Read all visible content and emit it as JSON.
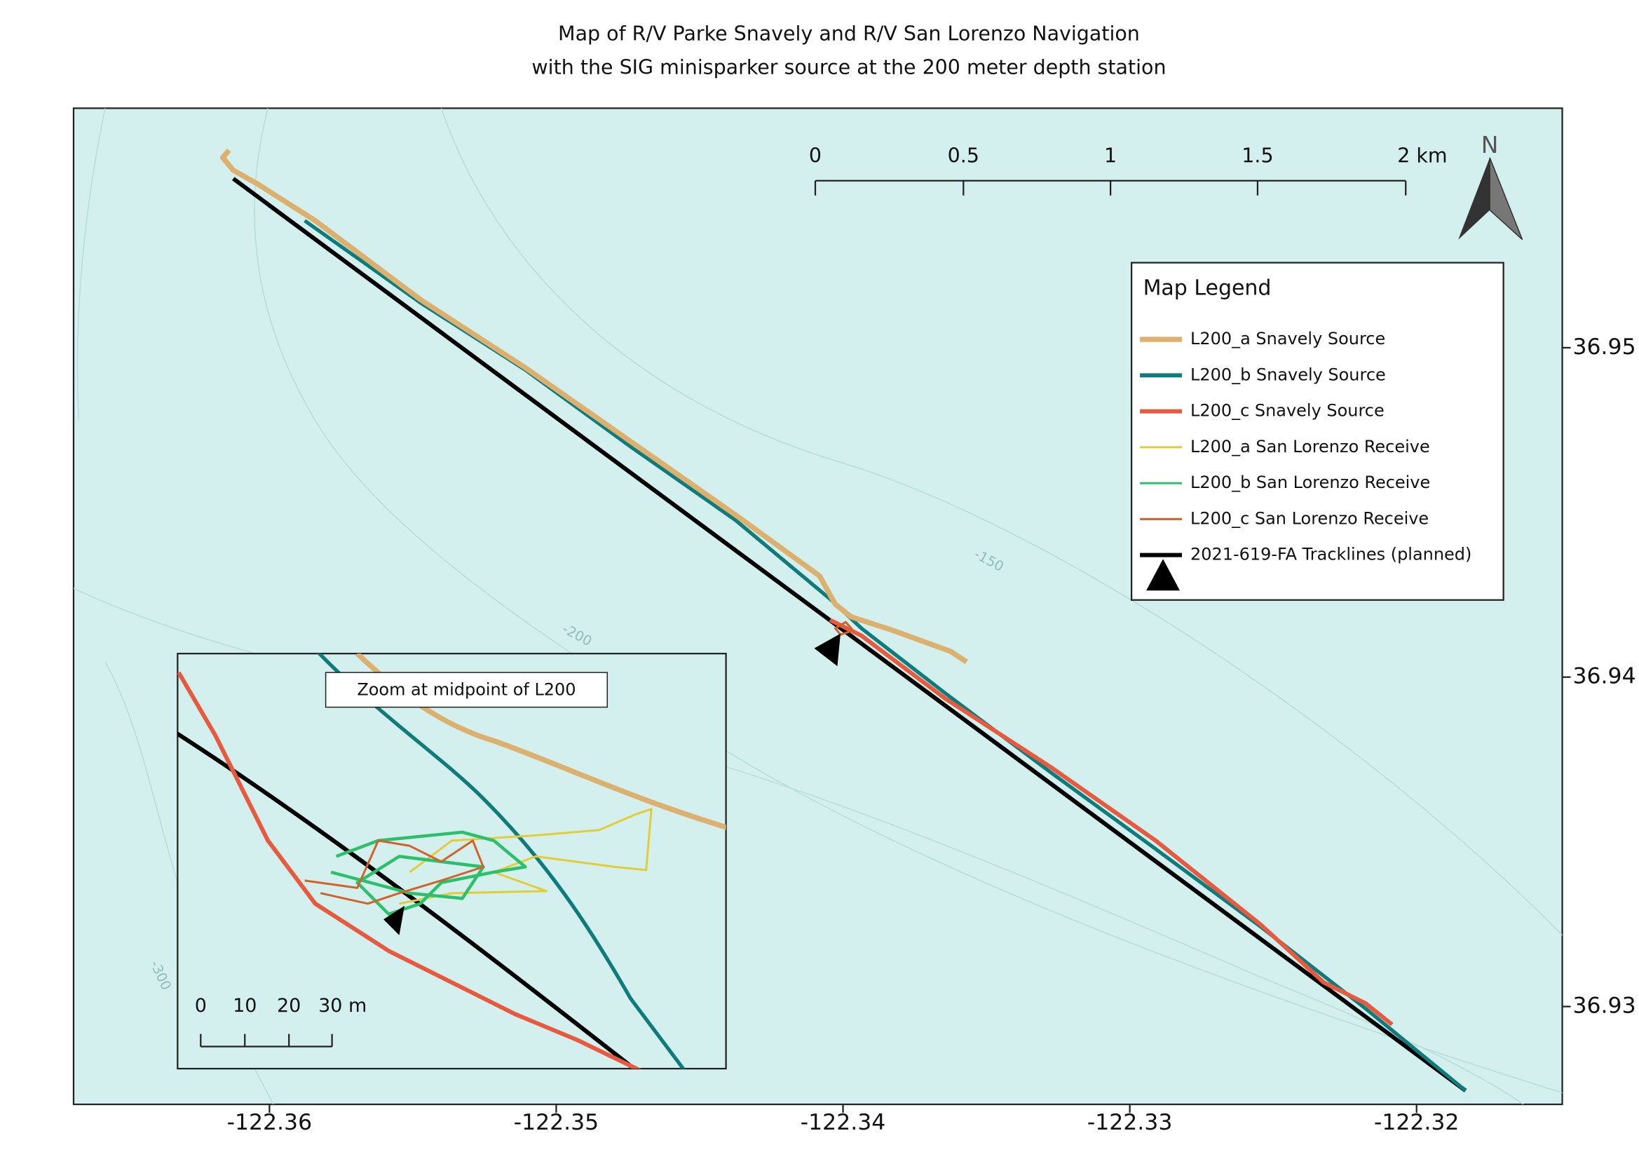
{
  "title": [
    "Map of R/V Parke Snavely and R/V San Lorenzo Navigation",
    "with the SIG minisparker source at the 200 meter depth station"
  ],
  "map": {
    "xlim": [
      -122.36683,
      -122.31492
    ],
    "ylim": [
      36.92703,
      36.95727
    ],
    "xticks": [
      -122.36,
      -122.35,
      -122.34,
      -122.33,
      -122.32
    ],
    "yticks": [
      36.93,
      36.94,
      36.95
    ],
    "contour_labels": [
      "-150",
      "-200",
      "-300"
    ]
  },
  "scale_bar": [
    "0",
    "0.5",
    "1",
    "1.5",
    "2 km"
  ],
  "north_arrow": "N",
  "legend": {
    "title": "Map Legend",
    "items": [
      {
        "name": "L200_a Snavely Source",
        "color": "#dcb06e",
        "width": 5
      },
      {
        "name": "L200_b Snavely Source",
        "color": "#0f7b7b",
        "width": 4
      },
      {
        "name": "L200_c Snavely Source",
        "color": "#e85a3f",
        "width": 4
      },
      {
        "name": "L200_a San Lorenzo Receive",
        "color": "#e3cc3a",
        "width": 2
      },
      {
        "name": "L200_b San Lorenzo Receive",
        "color": "#2dbf6a",
        "width": 2
      },
      {
        "name": "L200_c San Lorenzo Receive",
        "color": "#d2612a",
        "width": 2
      },
      {
        "name": "2021-619-FA Tracklines (planned)",
        "color": "#000000",
        "width": 4
      }
    ]
  },
  "inset": {
    "title": "Zoom at midpoint of L200",
    "scale_bar": [
      "0",
      "10",
      "20",
      "30 m"
    ]
  }
}
